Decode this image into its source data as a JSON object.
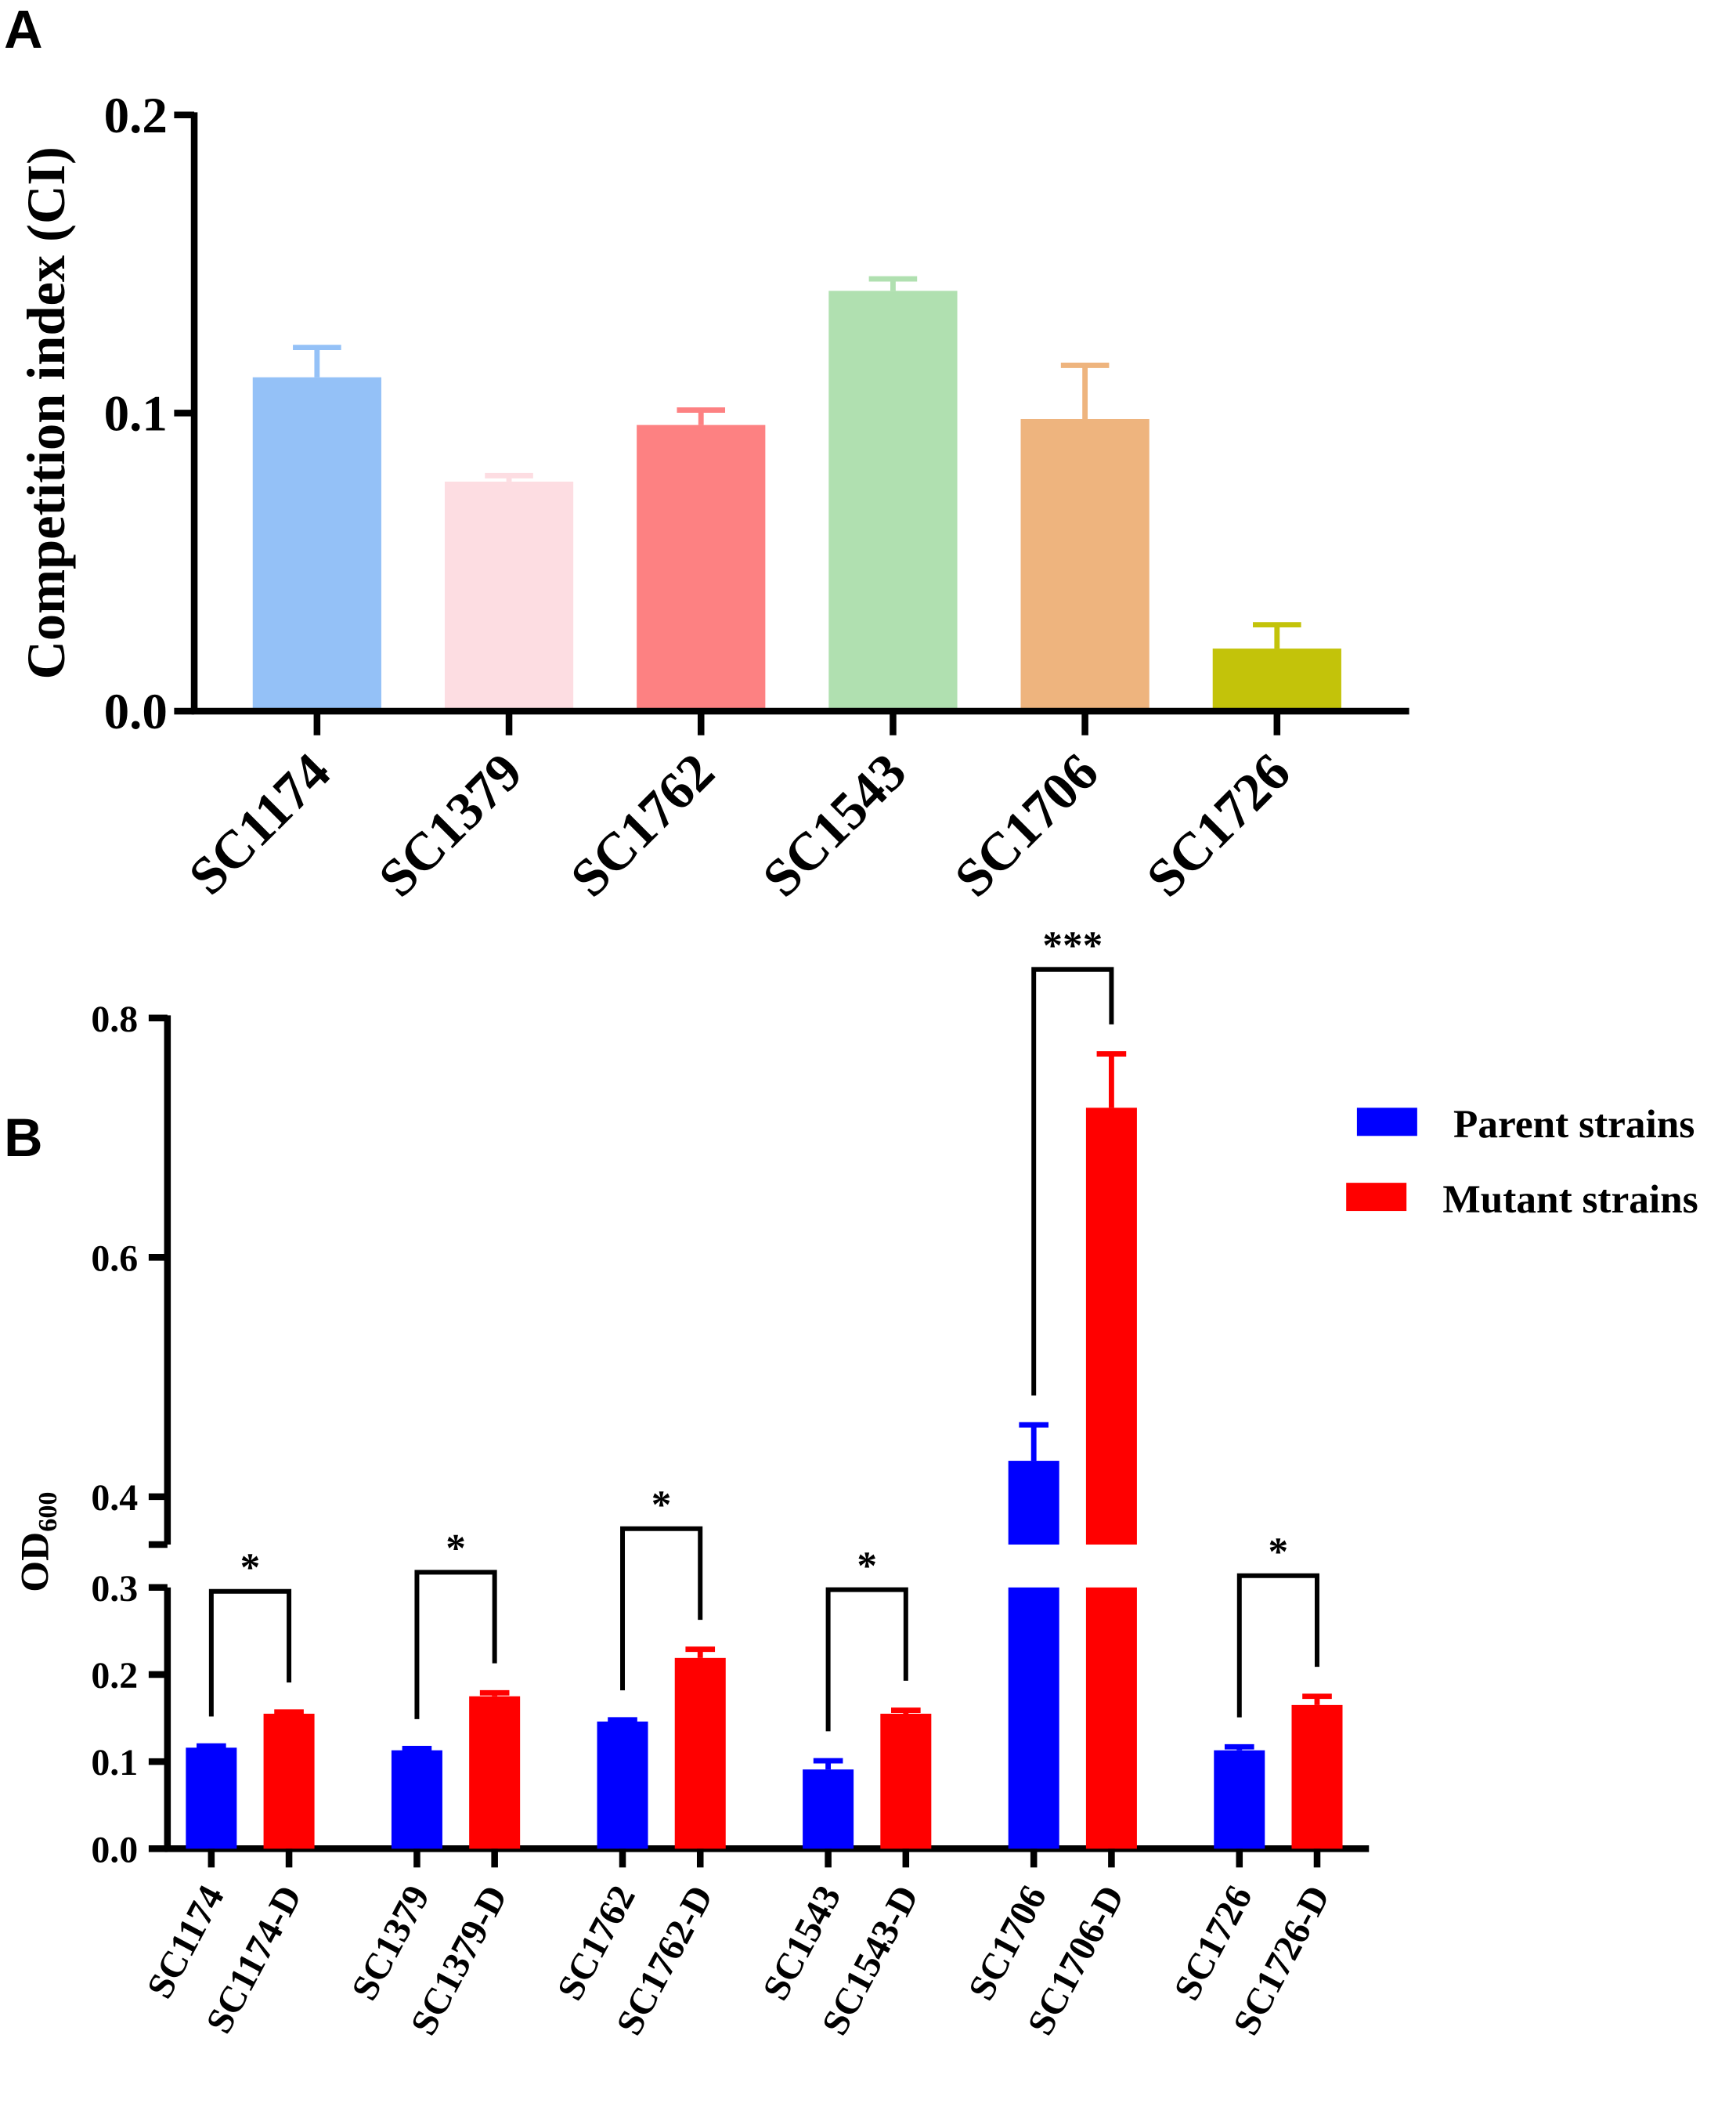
{
  "chart_data": [
    {
      "type": "bar",
      "panel": "A",
      "ylabel": "Competition index (CI)",
      "categories": [
        "SC1174",
        "SC1379",
        "SC1762",
        "SC1543",
        "SC1706",
        "SC1726"
      ],
      "values": [
        0.112,
        0.077,
        0.096,
        0.141,
        0.098,
        0.021
      ],
      "errors": [
        0.01,
        0.002,
        0.005,
        0.004,
        0.018,
        0.008
      ],
      "colors": [
        "#94c1f7",
        "#fddde2",
        "#fd8182",
        "#b0e0b0",
        "#eeb47e",
        "#c3c30a"
      ],
      "ylim": [
        0,
        0.2
      ],
      "yticks": [
        {
          "value": 0,
          "label": "0.0"
        },
        0.1,
        0.2
      ]
    },
    {
      "type": "grouped_bar_broken",
      "panel": "B",
      "ylabel": "OD",
      "ylabel_sub": "600",
      "series": [
        {
          "name": "Parent strains",
          "color": "#0000ff",
          "labels": [
            "SC1174",
            "SC1379",
            "SC1762",
            "SC1543",
            "SC1706",
            "SC1726"
          ],
          "values": [
            0.116,
            0.113,
            0.146,
            0.091,
            0.43,
            0.113
          ],
          "errors": [
            0.002,
            0.002,
            0.002,
            0.01,
            0.03,
            0.004
          ]
        },
        {
          "name": "Mutant strains",
          "color": "#ff0000",
          "labels": [
            "SC1174-D",
            "SC1379-D",
            "SC1762-D",
            "SC1543-D",
            "SC1706-D",
            "SC1726-D"
          ],
          "values": [
            0.155,
            0.175,
            0.219,
            0.155,
            0.725,
            0.165
          ],
          "errors": [
            0.002,
            0.004,
            0.01,
            0.004,
            0.045,
            0.01
          ]
        }
      ],
      "significance": [
        "*",
        "*",
        "*",
        "*",
        "***",
        "*"
      ],
      "ylim": [
        0,
        0.8
      ],
      "ybreak": [
        0.3,
        0.36
      ],
      "yticks": [
        {
          "value": 0,
          "label": "0.0"
        },
        0.1,
        0.2,
        0.3,
        0.4,
        0.6,
        0.8
      ]
    }
  ]
}
